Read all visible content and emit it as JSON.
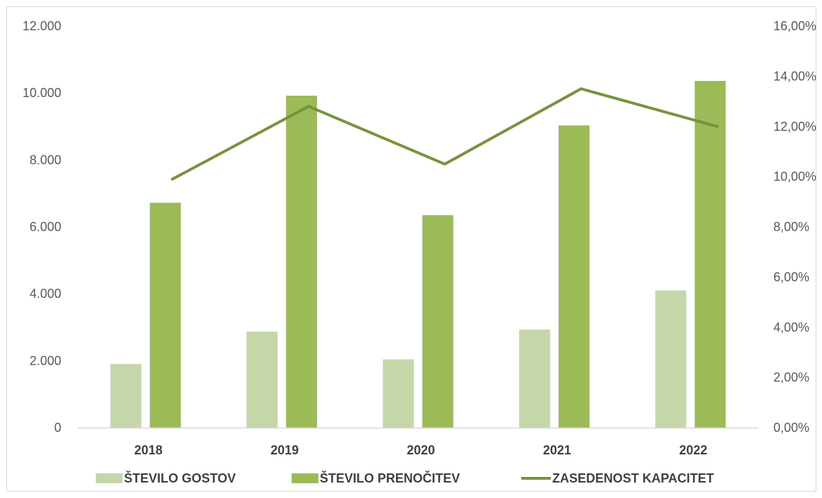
{
  "chart_data": {
    "type": "bar",
    "categories": [
      "2018",
      "2019",
      "2020",
      "2021",
      "2022"
    ],
    "series": [
      {
        "name": "ŠTEVILO GOSTOV",
        "type": "bar",
        "axis": "left",
        "color": "#c5d6a8",
        "values": [
          1900,
          2870,
          2040,
          2930,
          4100
        ]
      },
      {
        "name": "ŠTEVILO PRENOČITEV",
        "type": "bar",
        "axis": "left",
        "color": "#9bbb59",
        "values": [
          6720,
          9920,
          6350,
          9030,
          10360
        ]
      },
      {
        "name": "ZASEDENOST KAPACITET",
        "type": "line",
        "axis": "right",
        "color": "#77933c",
        "values": [
          9.9,
          12.8,
          10.5,
          13.5,
          12.0
        ]
      }
    ],
    "y_left": {
      "ylim": [
        0,
        12000
      ],
      "ticks": [
        "0",
        "2.000",
        "4.000",
        "6.000",
        "8.000",
        "10.000",
        "12.000"
      ],
      "tick_values": [
        0,
        2000,
        4000,
        6000,
        8000,
        10000,
        12000
      ]
    },
    "y_right": {
      "ylim": [
        0,
        16
      ],
      "unit": "%",
      "ticks": [
        "0,00%",
        "2,00%",
        "4,00%",
        "6,00%",
        "8,00%",
        "10,00%",
        "12,00%",
        "14,00%",
        "16,00%"
      ],
      "tick_values": [
        0,
        2,
        4,
        6,
        8,
        10,
        12,
        14,
        16
      ]
    },
    "grid": false,
    "legend_position": "bottom"
  }
}
